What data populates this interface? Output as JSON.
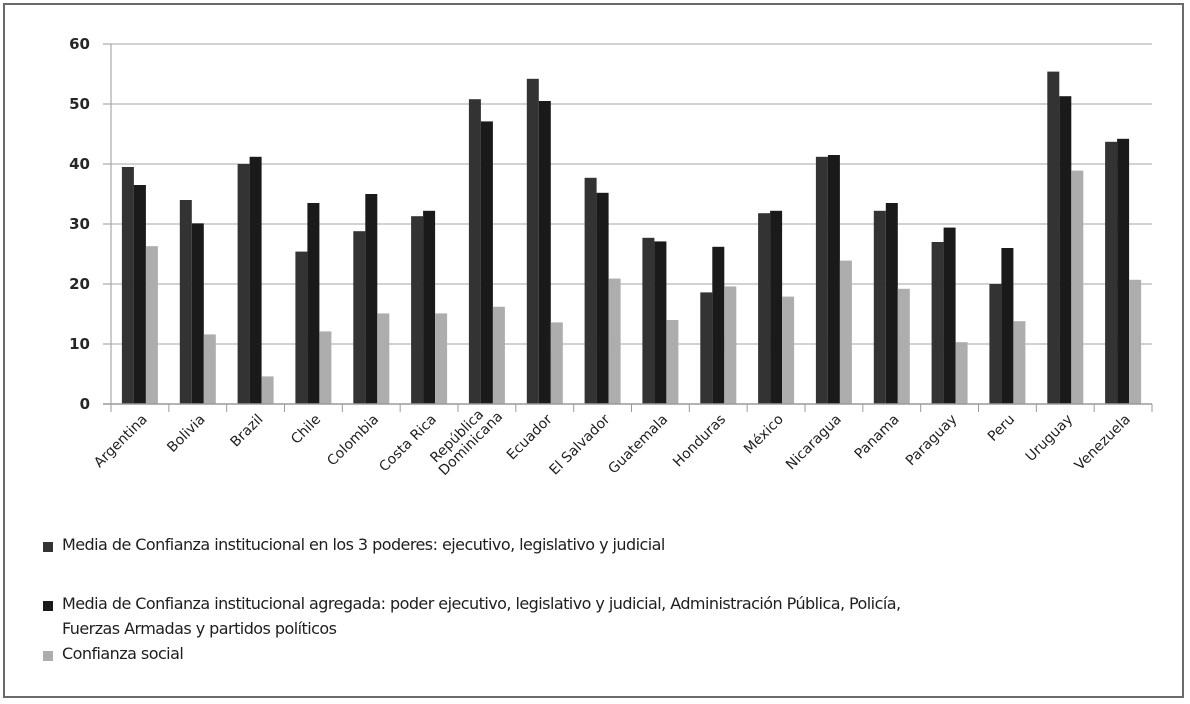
{
  "chart_data": {
    "type": "bar",
    "title": "",
    "xlabel": "",
    "ylabel": "",
    "ylim": [
      0,
      60
    ],
    "yticks": [
      0,
      10,
      20,
      30,
      40,
      50,
      60
    ],
    "grid": true,
    "legend_position": "bottom",
    "categories": [
      "Argentina",
      "Bolivia",
      "Brazil",
      "Chile",
      "Colombia",
      "Costa Rica",
      "República Dominicana",
      "Ecuador",
      "El Salvador",
      "Guatemala",
      "Honduras",
      "México",
      "Nicaragua",
      "Panama",
      "Paraguay",
      "Peru",
      "Uruguay",
      "Venezuela"
    ],
    "category_label_lines": [
      [
        "Argentina"
      ],
      [
        "Bolivia"
      ],
      [
        "Brazil"
      ],
      [
        "Chile"
      ],
      [
        "Colombia"
      ],
      [
        "Costa Rica"
      ],
      [
        "República",
        "Dominicana"
      ],
      [
        "Ecuador"
      ],
      [
        "El Salvador"
      ],
      [
        "Guatemala"
      ],
      [
        "Honduras"
      ],
      [
        "México"
      ],
      [
        "Nicaragua"
      ],
      [
        "Panama"
      ],
      [
        "Paraguay"
      ],
      [
        "Peru"
      ],
      [
        "Uruguay"
      ],
      [
        "Venezuela"
      ]
    ],
    "series": [
      {
        "name": "Media de Confianza institucional en los 3 poderes: ejecutivo, legislativo y judicial",
        "color": "#333333",
        "values": [
          39.5,
          34.0,
          40.0,
          25.4,
          28.8,
          31.3,
          50.8,
          54.2,
          37.7,
          27.7,
          18.6,
          31.8,
          41.2,
          32.2,
          27.0,
          20.0,
          55.4,
          43.7
        ]
      },
      {
        "name": "Media de Confianza institucional agregada: poder ejecutivo, legislativo y judicial, Administración Pública, Policía, Fuerzas Armadas y partidos políticos",
        "color": "#1a1a1a",
        "values": [
          36.5,
          30.1,
          41.2,
          33.5,
          35.0,
          32.2,
          47.1,
          50.5,
          35.2,
          27.1,
          26.2,
          32.2,
          41.5,
          33.5,
          29.4,
          26.0,
          51.3,
          44.2
        ]
      },
      {
        "name": "Confianza social",
        "color": "#adadad",
        "values": [
          26.3,
          11.6,
          4.6,
          12.1,
          15.1,
          15.1,
          16.2,
          13.6,
          20.9,
          14.0,
          19.6,
          17.9,
          23.9,
          19.2,
          10.3,
          13.8,
          38.9,
          20.7
        ]
      }
    ]
  },
  "legend": {
    "items": [
      {
        "lines": [
          "Media de Confianza institucional  en los 3 poderes: ejecutivo, legislativo  y judicial"
        ],
        "color": "#333333"
      },
      {
        "lines": [
          "Media de Confianza institucional  agregada: poder ejecutivo, legislativo  y judicial, Administración Pública, Policía,",
          "Fuerzas Armadas y partidos políticos"
        ],
        "color": "#1a1a1a"
      },
      {
        "lines": [
          "Confianza social"
        ],
        "color": "#adadad"
      }
    ]
  },
  "style": {
    "gridline_color": "#d2d2d2",
    "axis_color": "#9a9a9a",
    "frame_color": "#6a6a6a"
  }
}
